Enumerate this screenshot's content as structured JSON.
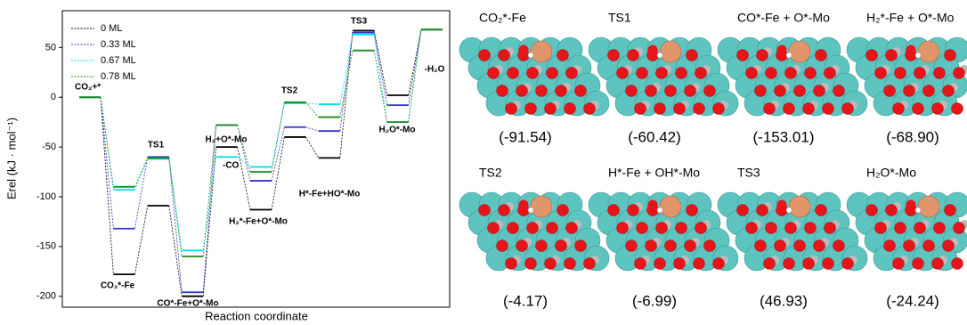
{
  "chart_data": {
    "type": "energy-profile",
    "ylabel": "Erel (kJ · mol⁻¹)",
    "xlabel": "Reaction coordinate",
    "categories": [
      "CO₂+*",
      "CO₂*-Fe",
      "TS1",
      "CO*-Fe+O*-Mo",
      "H₂+O*-Mo",
      "H₂*-Fe+O*-Mo",
      "TS2",
      "H*-Fe+HO*-Mo",
      "TS3",
      "H₂O*-Mo",
      "-H₂O"
    ],
    "annotation": "-CO",
    "series": [
      {
        "name": "0 ML",
        "color": "#000000",
        "values": [
          0,
          -178,
          -109,
          -200,
          -50,
          -113,
          -40,
          -61,
          67,
          2,
          68
        ]
      },
      {
        "name": "0.33 ML",
        "color": "#3333cc",
        "values": [
          0,
          -132,
          -60,
          -196,
          -28,
          -84,
          -30,
          -34,
          65,
          -8,
          68
        ]
      },
      {
        "name": "0.67 ML",
        "color": "#00e0ee",
        "values": [
          0,
          -93,
          -62,
          -154,
          -60,
          -70,
          -6,
          -7,
          63,
          -25,
          68
        ]
      },
      {
        "name": "0.78 ML",
        "color": "#1a8c1a",
        "values": [
          0,
          -90,
          -61,
          -160,
          -28,
          -75,
          -5,
          -20,
          47,
          -25,
          68
        ]
      }
    ],
    "ylim": [
      -211,
      87
    ],
    "yticks": [
      -200,
      -150,
      -100,
      -50,
      0,
      50
    ],
    "legend": "upper left"
  },
  "structures": [
    {
      "label": "CO₂*-Fe",
      "energy": "(-91.54)"
    },
    {
      "label": "TS1",
      "energy": "(-60.42)"
    },
    {
      "label": "CO*-Fe + O*-Mo",
      "energy": "(-153.01)"
    },
    {
      "label": "H₂*-Fe + O*-Mo",
      "energy": "(-68.90)"
    },
    {
      "label": "TS2",
      "energy": "(-4.17)"
    },
    {
      "label": "H*-Fe + OH*-Mo",
      "energy": "(-6.99)"
    },
    {
      "label": "TS3",
      "energy": "(46.93)"
    },
    {
      "label": "H₂O*-Mo",
      "energy": "(-24.24)"
    }
  ]
}
